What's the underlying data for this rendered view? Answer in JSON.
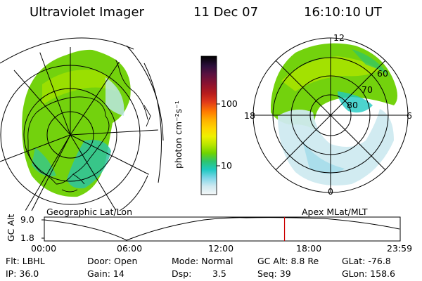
{
  "header": {
    "instrument": "Ultraviolet Imager",
    "date": "11 Dec 07",
    "time": "16:10:10 UT"
  },
  "colorbar": {
    "unit_label": "photon cm⁻²s⁻¹",
    "ticks": [
      "100",
      "10"
    ],
    "colors": [
      "#000000",
      "#2b0e3a",
      "#5a1140",
      "#8b1230",
      "#b71c1c",
      "#e0391a",
      "#ff7a00",
      "#ffb000",
      "#ffd400",
      "#eef000",
      "#b8e600",
      "#6fd400",
      "#2ec46e",
      "#1fc9c2",
      "#7fd6e8",
      "#cfe9f0",
      "#f4f7f8"
    ]
  },
  "left_map": {
    "caption": "Geographic Lat/Lon"
  },
  "right_map": {
    "caption": "Apex MLat/MLT",
    "labels": {
      "top": "12",
      "left": "18",
      "right": "6",
      "bottom": "0",
      "lat60": "60",
      "lat70": "70",
      "lat80": "80"
    }
  },
  "altitude_plot": {
    "ylabel": "GC Alt",
    "yticks": [
      "9.0",
      "1.8"
    ],
    "xticks": [
      "00:00",
      "06:00",
      "12:00",
      "18:00",
      "23:59"
    ],
    "current_time_fraction": 0.675,
    "trace_color": "#000000",
    "marker_color": "#cc0000"
  },
  "footer": {
    "filter": "Flt: LBHL",
    "ip": "IP: 36.0",
    "door": "Door: Open",
    "gain": "Gain: 14",
    "mode": "Mode: Normal",
    "dsp_label": "Dsp:",
    "dsp_value": "3.5",
    "gc_alt": "GC Alt: 8.8 Re",
    "seq": "Seq: 39",
    "glat": "GLat: -76.8",
    "glon": "GLon: 158.6"
  }
}
